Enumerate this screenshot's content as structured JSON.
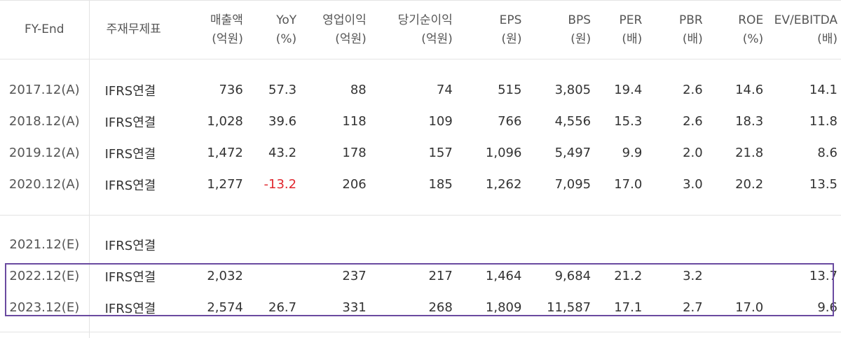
{
  "table": {
    "headers": [
      {
        "label": "FY-End",
        "unit": ""
      },
      {
        "label": "주재무제표",
        "unit": ""
      },
      {
        "label": "매출액",
        "unit": "(억원)"
      },
      {
        "label": "YoY",
        "unit": "(%)"
      },
      {
        "label": "영업이익",
        "unit": "(억원)"
      },
      {
        "label": "당기순이익",
        "unit": "(억원)"
      },
      {
        "label": "EPS",
        "unit": "(원)"
      },
      {
        "label": "BPS",
        "unit": "(원)"
      },
      {
        "label": "PER",
        "unit": "(배)"
      },
      {
        "label": "PBR",
        "unit": "(배)"
      },
      {
        "label": "ROE",
        "unit": "(%)"
      },
      {
        "label": "EV/EBITDA",
        "unit": "(배)"
      }
    ],
    "actual_rows": [
      [
        "2017.12(A)",
        "IFRS연결",
        "736",
        "57.3",
        "88",
        "74",
        "515",
        "3,805",
        "19.4",
        "2.6",
        "14.6",
        "14.1"
      ],
      [
        "2018.12(A)",
        "IFRS연결",
        "1,028",
        "39.6",
        "118",
        "109",
        "766",
        "4,556",
        "15.3",
        "2.6",
        "18.3",
        "11.8"
      ],
      [
        "2019.12(A)",
        "IFRS연결",
        "1,472",
        "43.2",
        "178",
        "157",
        "1,096",
        "5,497",
        "9.9",
        "2.0",
        "21.8",
        "8.6"
      ],
      [
        "2020.12(A)",
        "IFRS연결",
        "1,277",
        "-13.2",
        "206",
        "185",
        "1,262",
        "7,095",
        "17.0",
        "3.0",
        "20.2",
        "13.5"
      ]
    ],
    "estimate_rows": [
      [
        "2021.12(E)",
        "IFRS연결",
        "",
        "",
        "",
        "",
        "",
        "",
        "",
        "",
        "",
        ""
      ],
      [
        "2022.12(E)",
        "IFRS연결",
        "2,032",
        "",
        "237",
        "217",
        "1,464",
        "9,684",
        "21.2",
        "3.2",
        "",
        "13.7"
      ],
      [
        "2023.12(E)",
        "IFRS연결",
        "2,574",
        "26.7",
        "331",
        "268",
        "1,809",
        "11,587",
        "17.1",
        "2.7",
        "17.0",
        "9.6"
      ]
    ]
  },
  "colors": {
    "negative": "#e0262e",
    "highlight_border": "#6a4aa0",
    "grid_line": "#e3e3e3"
  }
}
